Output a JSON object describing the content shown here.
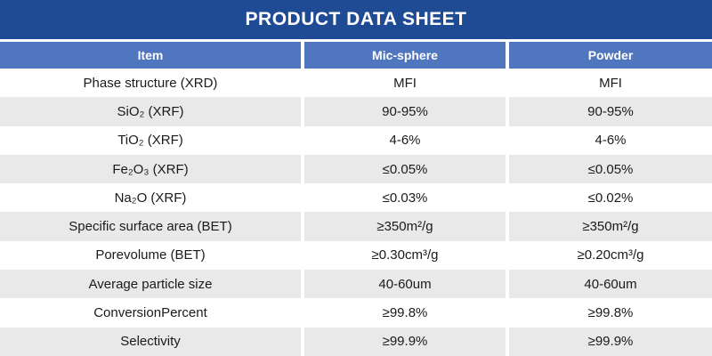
{
  "title": "PRODUCT DATA SHEET",
  "colors": {
    "title_bar": "#1e4b94",
    "header_row": "#4f76be",
    "alt_row": "#e9e9e9",
    "text": "#1a1a1a",
    "header_text": "#ffffff"
  },
  "table": {
    "columns": [
      "Item",
      "Mic-sphere",
      "Powder"
    ],
    "rows": [
      {
        "item": "Phase structure (XRD)",
        "mic_sphere": "MFI",
        "powder": "MFI"
      },
      {
        "item": "SiO₂ (XRF)",
        "mic_sphere": "90-95%",
        "powder": "90-95%"
      },
      {
        "item": "TiO₂ (XRF)",
        "mic_sphere": "4-6%",
        "powder": "4-6%"
      },
      {
        "item": "Fe₂O₃ (XRF)",
        "mic_sphere": "≤0.05%",
        "powder": "≤0.05%"
      },
      {
        "item": "Na₂O (XRF)",
        "mic_sphere": "≤0.03%",
        "powder": "≤0.02%"
      },
      {
        "item": "Specific surface area (BET)",
        "mic_sphere": "≥350m²/g",
        "powder": "≥350m²/g"
      },
      {
        "item": "Porevolume (BET)",
        "mic_sphere": "≥0.30cm³/g",
        "powder": "≥0.20cm³/g"
      },
      {
        "item": "Average particle size",
        "mic_sphere": "40-60um",
        "powder": "40-60um"
      },
      {
        "item": "ConversionPercent",
        "mic_sphere": "≥99.8%",
        "powder": "≥99.8%"
      },
      {
        "item": "Selectivity",
        "mic_sphere": "≥99.9%",
        "powder": "≥99.9%"
      }
    ]
  }
}
